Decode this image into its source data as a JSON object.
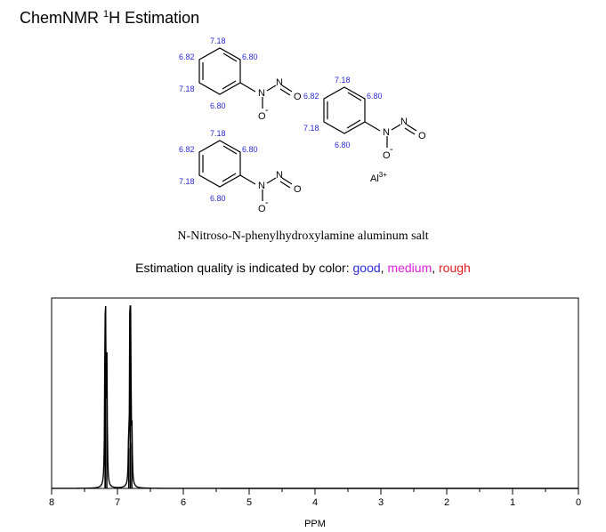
{
  "header": {
    "title_prefix": "ChemNMR ",
    "title_sup": "1",
    "title_suffix": "H Estimation"
  },
  "molecule": {
    "name": "N-Nitroso-N-phenylhydroxylamine aluminum salt",
    "counter_ion": "Al",
    "counter_ion_charge": "3+",
    "atom_N": "N",
    "atom_O": "O",
    "atom_O_minus": "O",
    "charge_minus": "-",
    "ring_shifts": {
      "top_left": "7.18",
      "upper_left": "6.82",
      "upper_right": "6.80",
      "lower_left": "7.18",
      "bottom": "6.80"
    },
    "ring2_shifts": {
      "top": "7.18",
      "upper_left": "6.82",
      "upper_right": "6.80",
      "lower_left": "7.18",
      "bottom": "6.80"
    },
    "ring3_shifts": {
      "top": "7.18",
      "upper_left": "6.82",
      "upper_right": "6.80",
      "lower_left": "7.18",
      "bottom": "6.80"
    }
  },
  "legend": {
    "prefix": "Estimation quality is indicated by color: ",
    "good": "good",
    "sep1": ", ",
    "medium": "medium",
    "sep2": ", ",
    "rough": "rough",
    "colors": {
      "good": "#2b2bd6",
      "medium": "#e020e0",
      "rough": "#e02020"
    }
  },
  "chart_data": {
    "type": "line",
    "xlabel": "PPM",
    "xlim": [
      8,
      0
    ],
    "x_reversed": true,
    "x_ticks": [
      8,
      7,
      6,
      5,
      4,
      3,
      2,
      1,
      0
    ],
    "peaks": [
      {
        "ppm": 7.19,
        "intensity": 0.62
      },
      {
        "ppm": 7.18,
        "intensity": 1.0
      },
      {
        "ppm": 7.16,
        "intensity": 0.64
      },
      {
        "ppm": 6.83,
        "intensity": 0.22
      },
      {
        "ppm": 6.81,
        "intensity": 1.0
      },
      {
        "ppm": 6.8,
        "intensity": 0.98
      },
      {
        "ppm": 6.78,
        "intensity": 0.25
      }
    ]
  }
}
